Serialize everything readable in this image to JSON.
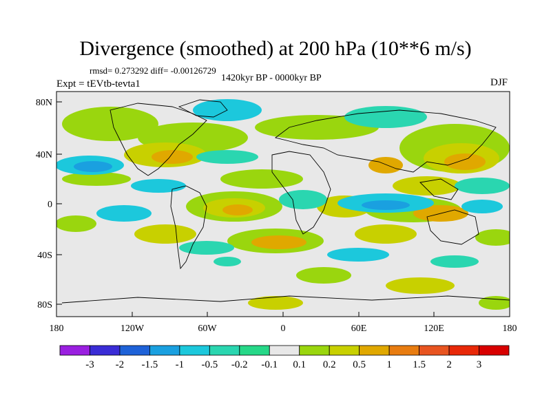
{
  "title": "Divergence (smoothed) at 200 hPa (10**6 m/s)",
  "stats": "rmsd= 0.273292 diff= -0.00126729",
  "period": "1420kyr BP - 0000kyr BP",
  "experiment": "Expt = tEVtb-tevta1",
  "season": "DJF",
  "lat_labels": [
    "80N",
    "40N",
    "0",
    "40S",
    "80S"
  ],
  "lon_labels": [
    "180",
    "120W",
    "60W",
    "0",
    "60E",
    "120E",
    "180"
  ],
  "colorbar": {
    "levels": [
      "-3",
      "-2",
      "-1.5",
      "-1",
      "-0.5",
      "-0.2",
      "-0.1",
      "0.1",
      "0.2",
      "0.5",
      "1",
      "1.5",
      "2",
      "3"
    ],
    "colors": [
      "#9a1fe0",
      "#3a2cd6",
      "#1e62d8",
      "#1aa0e0",
      "#1cc8dc",
      "#2ad6b0",
      "#26d888",
      "#e8e8e8",
      "#9ad60e",
      "#c8d000",
      "#e0a800",
      "#e87c10",
      "#e85420",
      "#e82808",
      "#d80000"
    ]
  }
}
